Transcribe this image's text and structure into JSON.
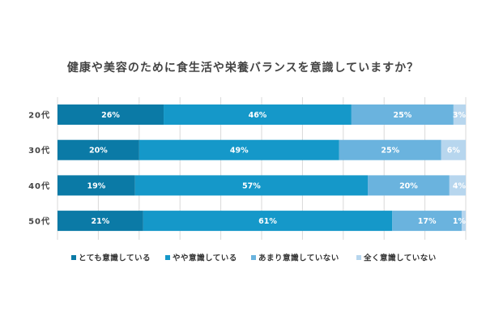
{
  "chart_data": {
    "type": "bar",
    "orientation": "horizontal",
    "stacked": true,
    "normalized_percent": true,
    "title": "健康や美容のために食生活や栄養バランスを意識していますか？",
    "categories": [
      "20代",
      "30代",
      "40代",
      "50代"
    ],
    "series": [
      {
        "name": "とても意識している",
        "color": "#0b7aa6",
        "values": [
          26,
          20,
          19,
          21
        ],
        "labels": [
          "26%",
          "20%",
          "19%",
          "21%"
        ]
      },
      {
        "name": "やや意識している",
        "color": "#1598c9",
        "values": [
          46,
          49,
          57,
          61
        ],
        "labels": [
          "46%",
          "49%",
          "57%",
          "61%"
        ]
      },
      {
        "name": "あまり意識していない",
        "color": "#6ab3de",
        "values": [
          25,
          25,
          20,
          17
        ],
        "labels": [
          "25%",
          "25%",
          "20%",
          "17%"
        ]
      },
      {
        "name": "全く意識していない",
        "color": "#b7d6ee",
        "values": [
          3,
          6,
          4,
          1
        ],
        "labels": [
          "3%",
          "6%",
          "4%",
          "1%"
        ]
      }
    ],
    "xlim": [
      0,
      100
    ],
    "grid": "vertical",
    "legend_position": "bottom"
  }
}
